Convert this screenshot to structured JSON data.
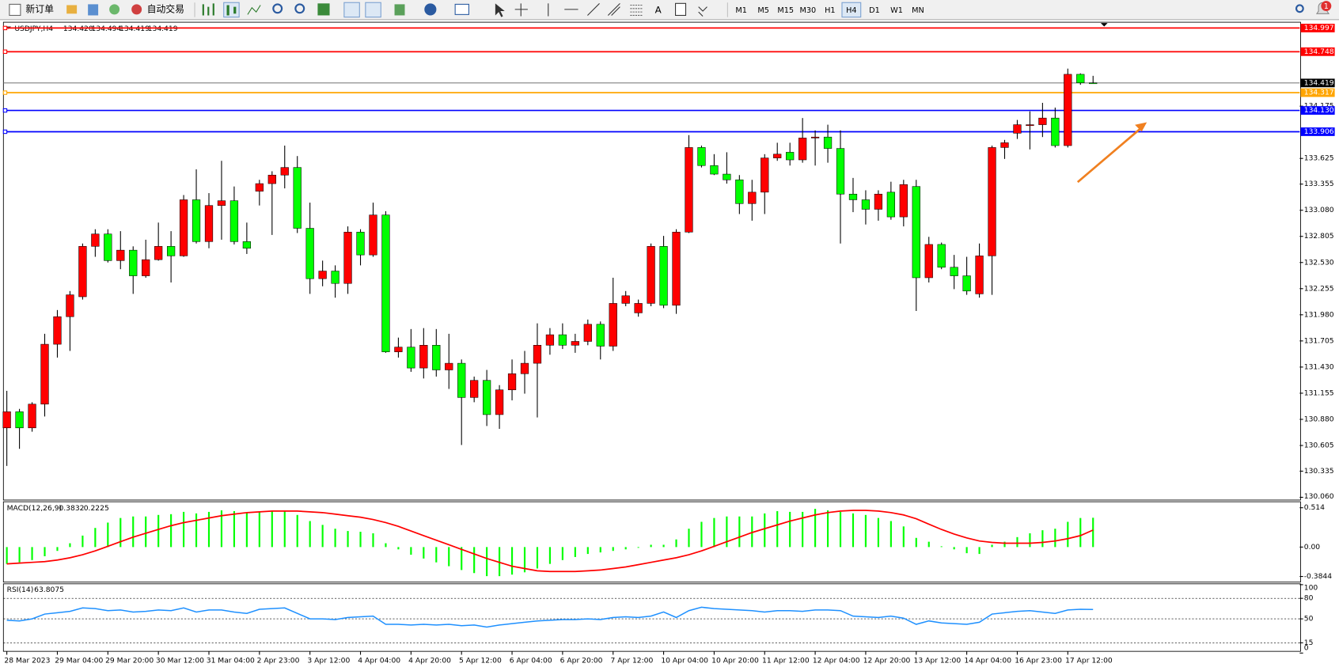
{
  "toolbar": {
    "new_order": "新订单",
    "auto_trading": "自动交易",
    "text_tool": "A",
    "timeframes": [
      {
        "label": "M1"
      },
      {
        "label": "M5"
      },
      {
        "label": "M15"
      },
      {
        "label": "M30"
      },
      {
        "label": "H1"
      },
      {
        "label": "H4",
        "active": true
      },
      {
        "label": "D1"
      },
      {
        "label": "W1"
      },
      {
        "label": "MN"
      }
    ],
    "notifications": 1
  },
  "chart_data": {
    "type": "candlestick",
    "title": "USDJPY,H4",
    "header_values": [
      "134.420",
      "134.494",
      "134.419",
      "134.419"
    ],
    "categories": [
      "28 Mar 2023",
      null,
      null,
      null,
      "29 Mar 04:00",
      null,
      null,
      null,
      "29 Mar 20:00",
      null,
      null,
      null,
      "30 Mar 12:00",
      null,
      null,
      null,
      "31 Mar 04:00",
      null,
      null,
      null,
      "2 Apr 23:00",
      null,
      null,
      null,
      "3 Apr 12:00",
      null,
      null,
      null,
      "4 Apr 04:00",
      null,
      null,
      null,
      "4 Apr 20:00",
      null,
      null,
      null,
      "5 Apr 12:00",
      null,
      null,
      null,
      "6 Apr 04:00",
      null,
      null,
      null,
      "6 Apr 20:00",
      null,
      null,
      null,
      "7 Apr 12:00",
      null,
      null,
      null,
      "10 Apr 04:00",
      null,
      null,
      null,
      "10 Apr 20:00",
      null,
      null,
      null,
      "11 Apr 12:00",
      null,
      null,
      null,
      "12 Apr 04:00",
      null,
      null,
      null,
      "12 Apr 20:00",
      null,
      null,
      null,
      "13 Apr 12:00",
      null,
      null,
      null,
      "14 Apr 04:00",
      null,
      null,
      null,
      "16 Apr 23:00",
      null,
      null,
      null,
      "17 Apr 12:00",
      null,
      null
    ],
    "open": [
      130.79,
      130.96,
      130.79,
      131.04,
      131.67,
      131.96,
      132.17,
      132.7,
      132.83,
      132.55,
      132.66,
      132.39,
      132.56,
      132.7,
      132.6,
      133.19,
      132.75,
      133.13,
      133.18,
      132.75,
      133.28,
      133.36,
      133.45,
      133.53,
      132.89,
      132.36,
      132.44,
      132.31,
      132.85,
      132.61,
      133.03,
      131.59,
      131.64,
      131.42,
      131.66,
      131.4,
      131.47,
      131.11,
      131.29,
      130.93,
      131.19,
      131.36,
      131.47,
      131.66,
      131.77,
      131.66,
      131.7,
      131.88,
      131.65,
      132.1,
      132.0,
      132.1,
      132.7,
      132.08,
      132.85,
      133.74,
      133.55,
      133.46,
      133.4,
      133.15,
      133.27,
      133.63,
      133.69,
      133.61,
      133.84,
      133.85,
      133.73,
      133.25,
      133.19,
      133.09,
      133.27,
      133.01,
      133.33,
      132.37,
      132.72,
      132.48,
      132.39,
      132.2,
      132.6,
      133.74,
      133.89,
      133.97,
      133.98,
      134.05,
      133.76,
      134.51,
      134.42
    ],
    "high": [
      131.18,
      130.99,
      131.06,
      131.78,
      132.03,
      132.23,
      132.73,
      132.88,
      132.88,
      132.86,
      132.7,
      132.77,
      132.95,
      132.86,
      133.24,
      133.51,
      133.26,
      133.6,
      133.33,
      132.95,
      133.4,
      133.49,
      133.76,
      133.65,
      133.16,
      132.55,
      132.5,
      132.91,
      132.88,
      133.16,
      133.07,
      131.74,
      131.83,
      131.84,
      131.83,
      131.78,
      131.51,
      131.33,
      131.4,
      131.24,
      131.51,
      131.6,
      131.89,
      131.84,
      131.89,
      131.78,
      131.93,
      131.91,
      132.37,
      132.23,
      132.14,
      132.73,
      132.81,
      132.88,
      133.87,
      133.76,
      133.67,
      133.69,
      133.45,
      133.4,
      133.67,
      133.79,
      133.79,
      134.05,
      133.92,
      133.98,
      133.92,
      133.42,
      133.29,
      133.29,
      133.38,
      133.4,
      133.4,
      132.8,
      132.74,
      132.61,
      132.59,
      132.73,
      133.76,
      133.82,
      134.03,
      134.12,
      134.21,
      134.16,
      134.57,
      134.52,
      134.494
    ],
    "low": [
      130.39,
      130.57,
      130.75,
      130.91,
      131.53,
      131.6,
      132.14,
      132.59,
      132.53,
      132.46,
      132.2,
      132.37,
      132.55,
      132.32,
      132.59,
      132.73,
      132.68,
      132.77,
      132.72,
      132.62,
      133.13,
      132.82,
      133.31,
      132.84,
      132.2,
      132.28,
      132.16,
      132.2,
      132.5,
      132.59,
      131.58,
      131.53,
      131.38,
      131.31,
      131.33,
      131.2,
      130.61,
      131.06,
      130.81,
      130.78,
      131.08,
      131.15,
      130.9,
      131.56,
      131.62,
      131.58,
      131.66,
      131.51,
      131.6,
      132.07,
      131.96,
      132.07,
      132.05,
      131.99,
      132.84,
      133.53,
      133.45,
      133.36,
      133.04,
      132.97,
      133.04,
      133.6,
      133.55,
      133.58,
      133.55,
      133.58,
      132.73,
      133.06,
      132.93,
      132.97,
      132.98,
      132.91,
      132.02,
      132.32,
      132.46,
      132.25,
      132.19,
      132.16,
      132.19,
      133.62,
      133.83,
      133.72,
      133.85,
      133.74,
      133.74,
      134.4,
      134.419
    ],
    "close": [
      130.96,
      130.79,
      131.04,
      131.67,
      131.96,
      132.19,
      132.7,
      132.83,
      132.55,
      132.66,
      132.39,
      132.56,
      132.7,
      132.6,
      133.19,
      132.75,
      133.13,
      133.18,
      132.75,
      132.68,
      133.36,
      133.45,
      133.53,
      132.89,
      132.36,
      132.44,
      132.31,
      132.85,
      132.61,
      133.03,
      131.59,
      131.64,
      131.42,
      131.66,
      131.4,
      131.47,
      131.11,
      131.29,
      130.93,
      131.19,
      131.36,
      131.47,
      131.66,
      131.77,
      131.66,
      131.7,
      131.88,
      131.65,
      132.1,
      132.18,
      132.1,
      132.7,
      132.08,
      132.85,
      133.74,
      133.55,
      133.46,
      133.4,
      133.15,
      133.27,
      133.63,
      133.67,
      133.61,
      133.84,
      133.85,
      133.73,
      133.25,
      133.19,
      133.09,
      133.25,
      133.01,
      133.35,
      132.37,
      132.72,
      132.48,
      132.39,
      132.23,
      132.6,
      133.74,
      133.79,
      133.98,
      133.98,
      134.05,
      133.76,
      134.51,
      134.42,
      134.419
    ],
    "up_color": "#ff0000",
    "down_color": "#00ff00",
    "ylim": [
      130.04,
      135.04
    ],
    "yticks": [
      134.175,
      133.625,
      133.355,
      {
        "value": 133.08,
        "label": "133.080"
      },
      132.805,
      {
        "value": 132.53,
        "label": "132.530"
      },
      132.255,
      {
        "value": 131.98,
        "label": "131.980"
      },
      131.705,
      {
        "value": 131.43,
        "label": "131.430"
      },
      131.155,
      {
        "value": 130.88,
        "label": "130.880"
      },
      130.605,
      130.335,
      {
        "value": 130.06,
        "label": "130.060"
      }
    ],
    "levels": [
      {
        "value": 134.997,
        "label": "134.997",
        "color": "#ff0000"
      },
      {
        "value": 134.748,
        "label": "134.748",
        "color": "#ff0000"
      },
      {
        "value": 134.317,
        "label": "134.317",
        "color": "#ffa500"
      },
      {
        "value": 134.13,
        "label": "134.130",
        "color": "#0000ff"
      },
      {
        "value": 133.906,
        "label": "133.906",
        "color": "#0000ff"
      }
    ],
    "bid_line_color": "#808080",
    "macd": {
      "title": "MACD(12,26,9)",
      "histogram_color": "#00ff00",
      "signal_color": "#ff0000",
      "histogram": [
        -0.22,
        -0.2,
        -0.17,
        -0.12,
        -0.05,
        0.05,
        0.15,
        0.25,
        0.32,
        0.38,
        0.4,
        0.4,
        0.42,
        0.43,
        0.46,
        0.44,
        0.46,
        0.48,
        0.47,
        0.45,
        0.46,
        0.47,
        0.48,
        0.42,
        0.34,
        0.29,
        0.24,
        0.21,
        0.2,
        0.18,
        0.05,
        -0.03,
        -0.1,
        -0.15,
        -0.2,
        -0.25,
        -0.3,
        -0.34,
        -0.38,
        -0.38,
        -0.36,
        -0.33,
        -0.28,
        -0.22,
        -0.17,
        -0.13,
        -0.09,
        -0.07,
        -0.05,
        -0.03,
        -0.01,
        0.03,
        0.03,
        0.1,
        0.24,
        0.33,
        0.38,
        0.4,
        0.4,
        0.4,
        0.44,
        0.47,
        0.46,
        0.46,
        0.5,
        0.48,
        0.46,
        0.44,
        0.42,
        0.38,
        0.34,
        0.27,
        0.12,
        0.07,
        0.01,
        -0.03,
        -0.08,
        -0.09,
        0.03,
        0.07,
        0.13,
        0.18,
        0.22,
        0.24,
        0.33,
        0.38,
        0.3832
      ],
      "signal": [
        -0.22,
        -0.21,
        -0.2,
        -0.19,
        -0.17,
        -0.14,
        -0.1,
        -0.05,
        0.01,
        0.07,
        0.13,
        0.18,
        0.23,
        0.28,
        0.32,
        0.35,
        0.38,
        0.41,
        0.43,
        0.45,
        0.46,
        0.47,
        0.47,
        0.47,
        0.46,
        0.45,
        0.43,
        0.41,
        0.39,
        0.36,
        0.32,
        0.27,
        0.21,
        0.15,
        0.09,
        0.03,
        -0.03,
        -0.09,
        -0.15,
        -0.2,
        -0.25,
        -0.28,
        -0.31,
        -0.32,
        -0.32,
        -0.32,
        -0.31,
        -0.3,
        -0.28,
        -0.26,
        -0.23,
        -0.2,
        -0.17,
        -0.14,
        -0.1,
        -0.05,
        0.01,
        0.07,
        0.13,
        0.19,
        0.24,
        0.29,
        0.34,
        0.38,
        0.42,
        0.45,
        0.47,
        0.48,
        0.48,
        0.47,
        0.45,
        0.42,
        0.37,
        0.3,
        0.23,
        0.17,
        0.12,
        0.08,
        0.06,
        0.05,
        0.05,
        0.05,
        0.06,
        0.08,
        0.11,
        0.15,
        0.2225
      ],
      "ylim": [
        -0.458,
        0.57
      ],
      "yticks": [
        0.514,
        {
          "value": 0,
          "label": "0.00"
        },
        -0.3844
      ]
    },
    "rsi": {
      "title": "RSI(14)",
      "color": "#1e90ff",
      "values": [
        48,
        47,
        50,
        57,
        59,
        61,
        66,
        65,
        62,
        63,
        60,
        61,
        63,
        62,
        66,
        60,
        63,
        63,
        60,
        58,
        64,
        65,
        66,
        58,
        50,
        50,
        49,
        52,
        53,
        54,
        42,
        42,
        41,
        42,
        41,
        42,
        40,
        41,
        38,
        41,
        43,
        45,
        47,
        48,
        49,
        49,
        50,
        49,
        52,
        53,
        52,
        54,
        60,
        52,
        62,
        67,
        65,
        64,
        63,
        62,
        60,
        62,
        62,
        61,
        63,
        63,
        62,
        54,
        53,
        52,
        54,
        51,
        42,
        47,
        44,
        43,
        42,
        45,
        57,
        59,
        61,
        62,
        60,
        58,
        63,
        64,
        63.8075
      ],
      "ylim": [
        2.5,
        100
      ],
      "yticks": [
        100,
        80,
        50,
        15,
        0
      ]
    }
  }
}
